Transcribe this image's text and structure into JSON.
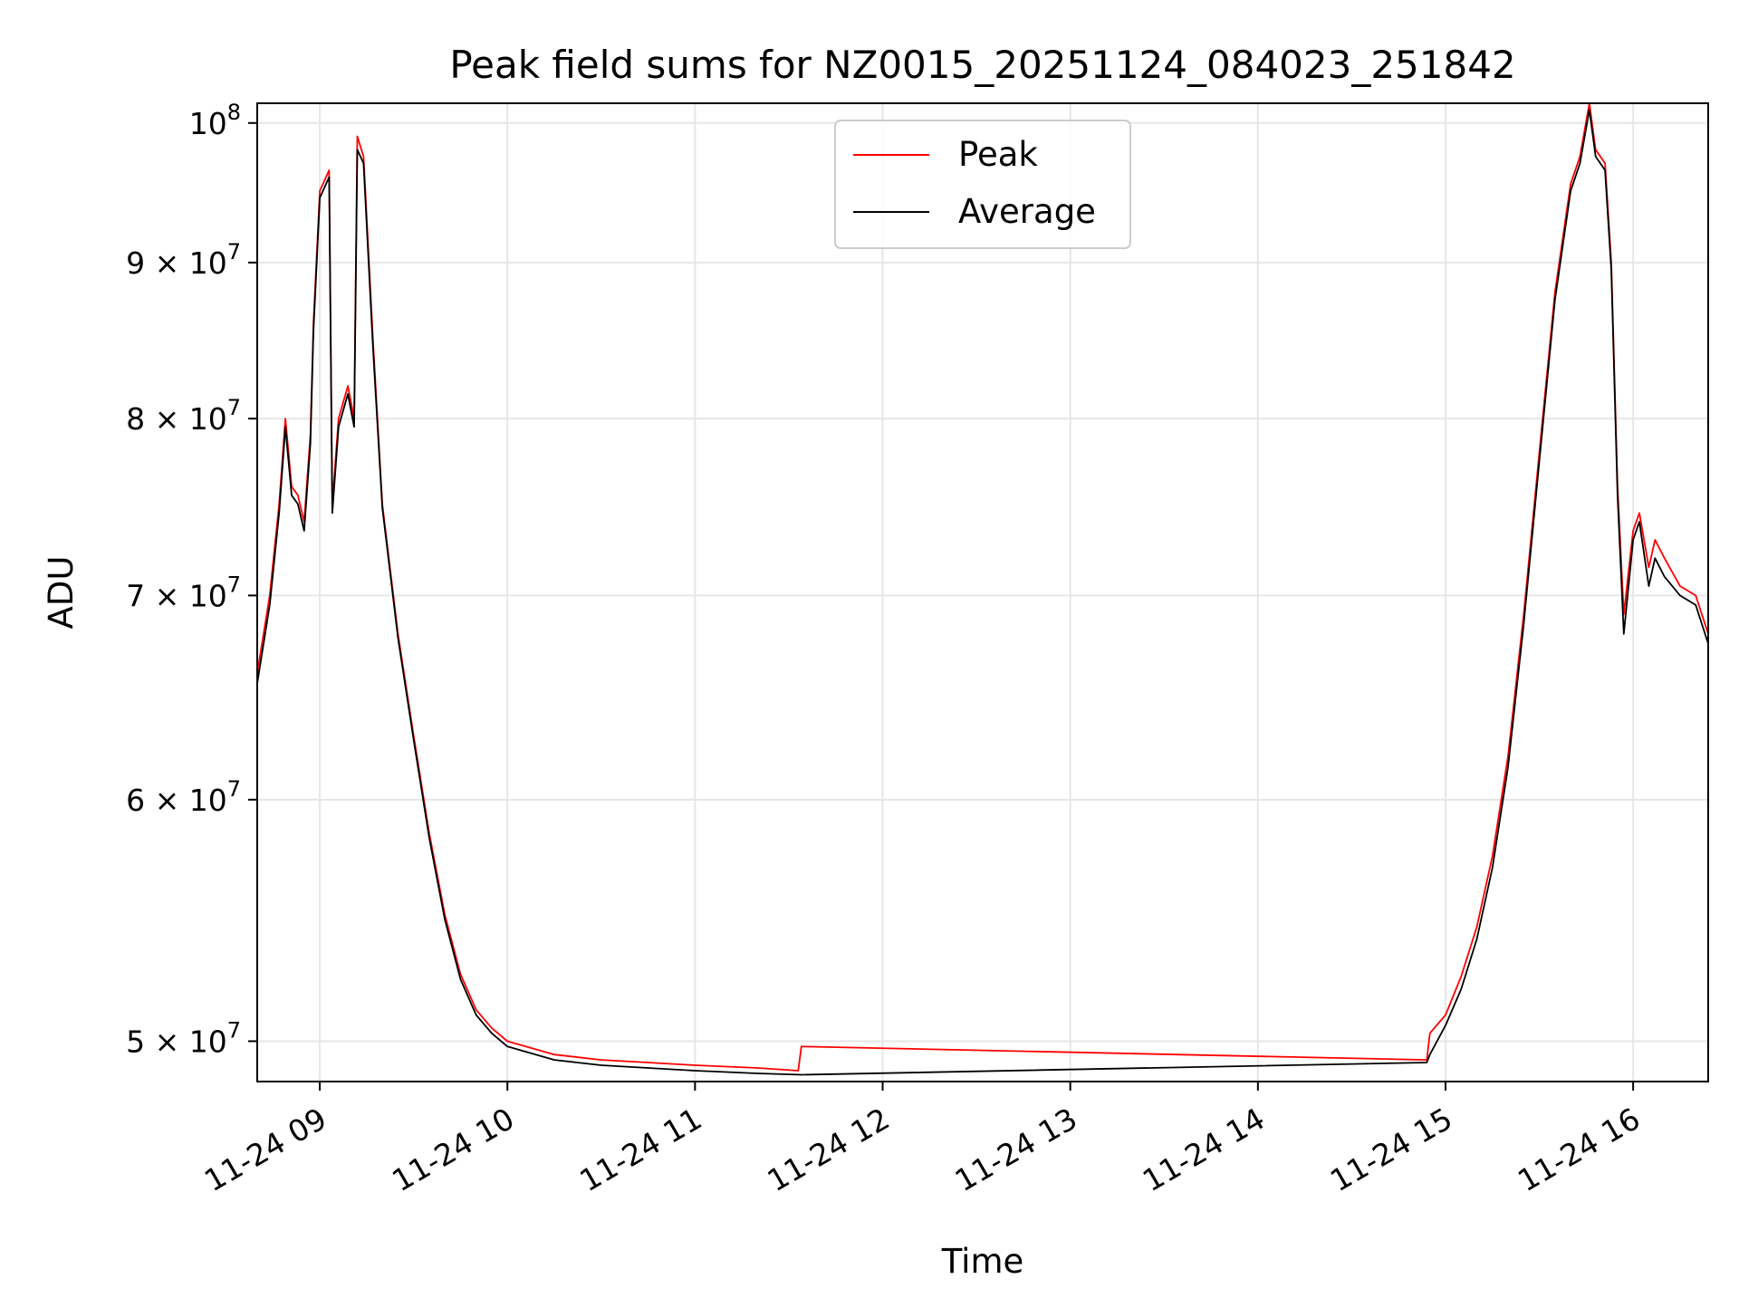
{
  "chart_data": {
    "type": "line",
    "title": "Peak field sums for NZ0015_20251124_084023_251842",
    "xlabel": "Time",
    "ylabel": "ADU",
    "yscale": "log",
    "ylim": [
      48500000,
      101500000
    ],
    "xlim": [
      "2025-11-24 08:40",
      "2025-11-24 16:24"
    ],
    "grid": true,
    "legend_position": "top-center",
    "x_ticks": [
      {
        "value": "2025-11-24 09:00",
        "label": "11-24 09"
      },
      {
        "value": "2025-11-24 10:00",
        "label": "11-24 10"
      },
      {
        "value": "2025-11-24 11:00",
        "label": "11-24 11"
      },
      {
        "value": "2025-11-24 12:00",
        "label": "11-24 12"
      },
      {
        "value": "2025-11-24 13:00",
        "label": "11-24 13"
      },
      {
        "value": "2025-11-24 14:00",
        "label": "11-24 14"
      },
      {
        "value": "2025-11-24 15:00",
        "label": "11-24 15"
      },
      {
        "value": "2025-11-24 16:00",
        "label": "11-24 16"
      }
    ],
    "y_ticks": [
      {
        "value": 50000000,
        "mantissa": "5",
        "base": "10",
        "exp": "7"
      },
      {
        "value": 60000000,
        "mantissa": "6",
        "base": "10",
        "exp": "7"
      },
      {
        "value": 70000000,
        "mantissa": "7",
        "base": "10",
        "exp": "7"
      },
      {
        "value": 80000000,
        "mantissa": "8",
        "base": "10",
        "exp": "7"
      },
      {
        "value": 90000000,
        "mantissa": "9",
        "base": "10",
        "exp": "7"
      },
      {
        "value": 100000000,
        "mantissa": "",
        "base": "10",
        "exp": "8"
      }
    ],
    "series": [
      {
        "name": "Peak",
        "color": "#ff0000",
        "points": [
          [
            "2025-11-24 08:40",
            66000000
          ],
          [
            "2025-11-24 08:44",
            70000000
          ],
          [
            "2025-11-24 08:47",
            75000000
          ],
          [
            "2025-11-24 08:49",
            80000000
          ],
          [
            "2025-11-24 08:51",
            76000000
          ],
          [
            "2025-11-24 08:53",
            75500000
          ],
          [
            "2025-11-24 08:55",
            74000000
          ],
          [
            "2025-11-24 08:57",
            79000000
          ],
          [
            "2025-11-24 08:58",
            86000000
          ],
          [
            "2025-11-24 09:00",
            95000000
          ],
          [
            "2025-11-24 09:03",
            96500000
          ],
          [
            "2025-11-24 09:04",
            75000000
          ],
          [
            "2025-11-24 09:06",
            80000000
          ],
          [
            "2025-11-24 09:09",
            82000000
          ],
          [
            "2025-11-24 09:11",
            80000000
          ],
          [
            "2025-11-24 09:12",
            99000000
          ],
          [
            "2025-11-24 09:14",
            97500000
          ],
          [
            "2025-11-24 09:17",
            85000000
          ],
          [
            "2025-11-24 09:20",
            75000000
          ],
          [
            "2025-11-24 09:25",
            68000000
          ],
          [
            "2025-11-24 09:30",
            63000000
          ],
          [
            "2025-11-24 09:35",
            58500000
          ],
          [
            "2025-11-24 09:40",
            55000000
          ],
          [
            "2025-11-24 09:45",
            52600000
          ],
          [
            "2025-11-24 09:50",
            51200000
          ],
          [
            "2025-11-24 09:55",
            50500000
          ],
          [
            "2025-11-24 10:00",
            50000000
          ],
          [
            "2025-11-24 10:15",
            49500000
          ],
          [
            "2025-11-24 10:30",
            49300000
          ],
          [
            "2025-11-24 10:45",
            49200000
          ],
          [
            "2025-11-24 11:00",
            49100000
          ],
          [
            "2025-11-24 11:20",
            49000000
          ],
          [
            "2025-11-24 11:33",
            48900000
          ],
          [
            "2025-11-24 11:34",
            49800000
          ],
          [
            "2025-11-24 14:54",
            49300000
          ],
          [
            "2025-11-24 14:55",
            50300000
          ],
          [
            "2025-11-24 15:00",
            51000000
          ],
          [
            "2025-11-24 15:05",
            52500000
          ],
          [
            "2025-11-24 15:10",
            54500000
          ],
          [
            "2025-11-24 15:15",
            57500000
          ],
          [
            "2025-11-24 15:20",
            62000000
          ],
          [
            "2025-11-24 15:25",
            69000000
          ],
          [
            "2025-11-24 15:30",
            78000000
          ],
          [
            "2025-11-24 15:35",
            88000000
          ],
          [
            "2025-11-24 15:40",
            95500000
          ],
          [
            "2025-11-24 15:43",
            97500000
          ],
          [
            "2025-11-24 15:46",
            101500000
          ],
          [
            "2025-11-24 15:48",
            98000000
          ],
          [
            "2025-11-24 15:51",
            97000000
          ],
          [
            "2025-11-24 15:53",
            90000000
          ],
          [
            "2025-11-24 15:55",
            76000000
          ],
          [
            "2025-11-24 15:57",
            69000000
          ],
          [
            "2025-11-24 16:00",
            73500000
          ],
          [
            "2025-11-24 16:02",
            74500000
          ],
          [
            "2025-11-24 16:05",
            71500000
          ],
          [
            "2025-11-24 16:07",
            73000000
          ],
          [
            "2025-11-24 16:10",
            72000000
          ],
          [
            "2025-11-24 16:15",
            70500000
          ],
          [
            "2025-11-24 16:20",
            70000000
          ],
          [
            "2025-11-24 16:24",
            68000000
          ]
        ]
      },
      {
        "name": "Average",
        "color": "#000000",
        "points": [
          [
            "2025-11-24 08:40",
            65500000
          ],
          [
            "2025-11-24 08:44",
            69500000
          ],
          [
            "2025-11-24 08:47",
            74500000
          ],
          [
            "2025-11-24 08:49",
            79500000
          ],
          [
            "2025-11-24 08:51",
            75500000
          ],
          [
            "2025-11-24 08:53",
            75000000
          ],
          [
            "2025-11-24 08:55",
            73500000
          ],
          [
            "2025-11-24 08:57",
            78500000
          ],
          [
            "2025-11-24 08:58",
            85500000
          ],
          [
            "2025-11-24 09:00",
            94500000
          ],
          [
            "2025-11-24 09:03",
            96000000
          ],
          [
            "2025-11-24 09:04",
            74500000
          ],
          [
            "2025-11-24 09:06",
            79500000
          ],
          [
            "2025-11-24 09:09",
            81500000
          ],
          [
            "2025-11-24 09:11",
            79500000
          ],
          [
            "2025-11-24 09:12",
            98000000
          ],
          [
            "2025-11-24 09:14",
            97000000
          ],
          [
            "2025-11-24 09:17",
            84500000
          ],
          [
            "2025-11-24 09:20",
            74800000
          ],
          [
            "2025-11-24 09:25",
            67800000
          ],
          [
            "2025-11-24 09:30",
            62800000
          ],
          [
            "2025-11-24 09:35",
            58300000
          ],
          [
            "2025-11-24 09:40",
            54800000
          ],
          [
            "2025-11-24 09:45",
            52400000
          ],
          [
            "2025-11-24 09:50",
            51000000
          ],
          [
            "2025-11-24 09:55",
            50300000
          ],
          [
            "2025-11-24 10:00",
            49800000
          ],
          [
            "2025-11-24 10:15",
            49300000
          ],
          [
            "2025-11-24 10:30",
            49100000
          ],
          [
            "2025-11-24 10:45",
            49000000
          ],
          [
            "2025-11-24 11:00",
            48900000
          ],
          [
            "2025-11-24 11:20",
            48800000
          ],
          [
            "2025-11-24 11:34",
            48750000
          ],
          [
            "2025-11-24 14:54",
            49200000
          ],
          [
            "2025-11-24 14:55",
            49500000
          ],
          [
            "2025-11-24 15:00",
            50600000
          ],
          [
            "2025-11-24 15:05",
            52000000
          ],
          [
            "2025-11-24 15:10",
            54000000
          ],
          [
            "2025-11-24 15:15",
            57000000
          ],
          [
            "2025-11-24 15:20",
            61500000
          ],
          [
            "2025-11-24 15:25",
            68500000
          ],
          [
            "2025-11-24 15:30",
            77500000
          ],
          [
            "2025-11-24 15:35",
            87500000
          ],
          [
            "2025-11-24 15:40",
            95000000
          ],
          [
            "2025-11-24 15:43",
            97000000
          ],
          [
            "2025-11-24 15:46",
            101000000
          ],
          [
            "2025-11-24 15:48",
            97500000
          ],
          [
            "2025-11-24 15:51",
            96500000
          ],
          [
            "2025-11-24 15:53",
            89500000
          ],
          [
            "2025-11-24 15:55",
            75500000
          ],
          [
            "2025-11-24 15:57",
            68000000
          ],
          [
            "2025-11-24 16:00",
            73000000
          ],
          [
            "2025-11-24 16:02",
            74000000
          ],
          [
            "2025-11-24 16:05",
            70500000
          ],
          [
            "2025-11-24 16:07",
            72000000
          ],
          [
            "2025-11-24 16:10",
            71000000
          ],
          [
            "2025-11-24 16:15",
            70000000
          ],
          [
            "2025-11-24 16:20",
            69500000
          ],
          [
            "2025-11-24 16:24",
            67500000
          ]
        ]
      }
    ]
  }
}
